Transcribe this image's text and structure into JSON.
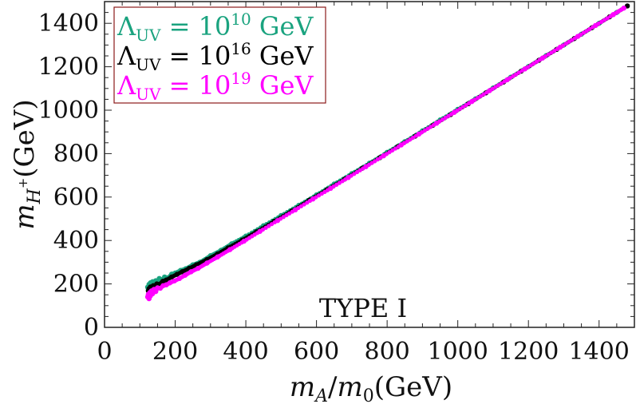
{
  "chart_data": {
    "type": "scatter",
    "title": "",
    "xlabel": "m_A/m_0(GeV)",
    "xlabel_parts": {
      "main": "m",
      "sub": "A",
      "slash": "/",
      "main2": "m",
      "sub2": "0",
      "unit": "(GeV)"
    },
    "ylabel": "m_{H+}(GeV)",
    "ylabel_parts": {
      "main": "m",
      "sub": "H",
      "sup": "+",
      "unit": "(GeV)"
    },
    "xlim": [
      0,
      1500
    ],
    "ylim": [
      0,
      1500
    ],
    "xticks": [
      0,
      200,
      400,
      600,
      800,
      1000,
      1200,
      1400
    ],
    "yticks": [
      0,
      200,
      400,
      600,
      800,
      1000,
      1200,
      1400
    ],
    "xtick_labels": [
      "0",
      "200",
      "400",
      "600",
      "800",
      "1000",
      "1200",
      "1400"
    ],
    "ytick_labels": [
      "0",
      "200",
      "400",
      "600",
      "800",
      "1000",
      "1200",
      "1400"
    ],
    "annotation": "TYPE I",
    "legend_position": "top-left",
    "legend": [
      {
        "prefix": "Λ",
        "sub": "UV",
        "mid": " =  10",
        "sup": "10",
        "suffix": " GeV",
        "color": "#1aa37f"
      },
      {
        "prefix": "Λ",
        "sub": "UV",
        "mid": " =  10",
        "sup": "16",
        "suffix": " GeV",
        "color": "#000000"
      },
      {
        "prefix": "Λ",
        "sub": "UV",
        "mid": " = 10",
        "sup": "19",
        "suffix": " GeV",
        "color": "#ff00ff"
      }
    ],
    "series": [
      {
        "name": "Λ_UV = 10^10 GeV",
        "color": "#1aa37f",
        "points": [
          [
            122,
            185
          ],
          [
            124,
            172
          ],
          [
            126,
            198
          ],
          [
            128,
            162
          ],
          [
            130,
            205
          ],
          [
            133,
            178
          ],
          [
            136,
            210
          ],
          [
            140,
            190
          ],
          [
            145,
            215
          ],
          [
            150,
            200
          ],
          [
            155,
            225
          ],
          [
            160,
            215
          ],
          [
            170,
            232
          ],
          [
            180,
            228
          ],
          [
            190,
            245
          ],
          [
            200,
            250
          ],
          [
            215,
            262
          ],
          [
            230,
            270
          ],
          [
            250,
            288
          ],
          [
            270,
            300
          ],
          [
            300,
            330
          ],
          [
            330,
            355
          ],
          [
            360,
            385
          ],
          [
            400,
            420
          ],
          [
            450,
            468
          ],
          [
            500,
            515
          ],
          [
            550,
            562
          ],
          [
            600,
            610
          ],
          [
            650,
            660
          ],
          [
            700,
            708
          ],
          [
            750,
            756
          ],
          [
            800,
            806
          ],
          [
            850,
            855
          ],
          [
            900,
            905
          ],
          [
            950,
            955
          ],
          [
            1000,
            1004
          ],
          [
            1050,
            1052
          ],
          [
            1100,
            1102
          ],
          [
            1150,
            1152
          ],
          [
            1200,
            1201
          ],
          [
            1250,
            1251
          ],
          [
            1300,
            1300
          ],
          [
            1350,
            1350
          ],
          [
            1400,
            1400
          ],
          [
            1450,
            1450
          ]
        ]
      },
      {
        "name": "Λ_UV = 10^16 GeV",
        "color": "#000000",
        "points": [
          [
            124,
            168
          ],
          [
            126,
            178
          ],
          [
            128,
            160
          ],
          [
            130,
            186
          ],
          [
            134,
            176
          ],
          [
            138,
            192
          ],
          [
            142,
            185
          ],
          [
            148,
            200
          ],
          [
            155,
            198
          ],
          [
            165,
            212
          ],
          [
            175,
            218
          ],
          [
            190,
            232
          ],
          [
            205,
            244
          ],
          [
            220,
            256
          ],
          [
            240,
            272
          ],
          [
            260,
            288
          ],
          [
            290,
            312
          ],
          [
            320,
            338
          ],
          [
            350,
            366
          ],
          [
            390,
            402
          ],
          [
            430,
            440
          ],
          [
            480,
            488
          ],
          [
            530,
            536
          ],
          [
            580,
            586
          ],
          [
            630,
            634
          ],
          [
            680,
            683
          ],
          [
            730,
            733
          ],
          [
            780,
            782
          ],
          [
            830,
            832
          ],
          [
            880,
            881
          ],
          [
            930,
            931
          ],
          [
            980,
            980
          ],
          [
            1030,
            1030
          ],
          [
            1080,
            1080
          ],
          [
            1130,
            1130
          ],
          [
            1180,
            1180
          ],
          [
            1230,
            1230
          ],
          [
            1280,
            1280
          ],
          [
            1330,
            1330
          ],
          [
            1380,
            1380
          ],
          [
            1430,
            1430
          ],
          [
            1480,
            1480
          ]
        ]
      },
      {
        "name": "Λ_UV = 10^19 GeV",
        "color": "#ff00ff",
        "points": [
          [
            122,
            140
          ],
          [
            124,
            152
          ],
          [
            126,
            132
          ],
          [
            128,
            160
          ],
          [
            130,
            145
          ],
          [
            133,
            168
          ],
          [
            136,
            155
          ],
          [
            140,
            175
          ],
          [
            145,
            165
          ],
          [
            150,
            182
          ],
          [
            158,
            180
          ],
          [
            166,
            192
          ],
          [
            175,
            196
          ],
          [
            185,
            205
          ],
          [
            198,
            214
          ],
          [
            212,
            225
          ],
          [
            228,
            240
          ],
          [
            245,
            256
          ],
          [
            265,
            272
          ],
          [
            290,
            296
          ],
          [
            320,
            324
          ],
          [
            355,
            358
          ],
          [
            395,
            397
          ],
          [
            440,
            442
          ],
          [
            490,
            492
          ],
          [
            540,
            541
          ],
          [
            590,
            591
          ],
          [
            640,
            640
          ],
          [
            690,
            690
          ],
          [
            740,
            740
          ],
          [
            790,
            790
          ],
          [
            840,
            840
          ],
          [
            890,
            890
          ],
          [
            940,
            940
          ],
          [
            990,
            990
          ],
          [
            1040,
            1040
          ],
          [
            1090,
            1090
          ],
          [
            1140,
            1140
          ],
          [
            1190,
            1190
          ],
          [
            1240,
            1240
          ],
          [
            1290,
            1290
          ],
          [
            1340,
            1340
          ],
          [
            1390,
            1390
          ],
          [
            1440,
            1440
          ],
          [
            1470,
            1470
          ]
        ]
      }
    ]
  }
}
